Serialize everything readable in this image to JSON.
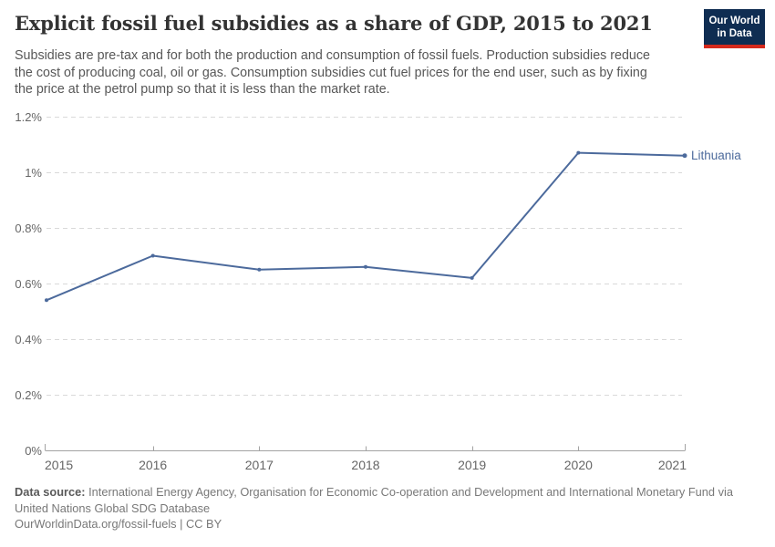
{
  "header": {
    "title": "Explicit fossil fuel subsidies as a share of GDP, 2015 to 2021",
    "subtitle": "Subsidies are pre-tax and for both the production and consumption of fossil fuels. Production subsidies reduce\nthe cost of producing coal, oil or gas. Consumption subsidies cut fuel prices for the end user, such as by fixing\nthe price at the petrol pump so that it is less than the market rate.",
    "logo": {
      "line1": "Our World",
      "line2": "in Data"
    }
  },
  "chart_data": {
    "type": "line",
    "title": "Explicit fossil fuel subsidies as a share of GDP, 2015 to 2021",
    "x": [
      2015,
      2016,
      2017,
      2018,
      2019,
      2020,
      2021
    ],
    "xticks": [
      "2015",
      "2016",
      "2017",
      "2018",
      "2019",
      "2020",
      "2021"
    ],
    "series": [
      {
        "name": "Lithuania",
        "color": "#4c6a9c",
        "values": [
          0.54,
          0.7,
          0.65,
          0.66,
          0.62,
          1.07,
          1.06
        ]
      }
    ],
    "ylim": [
      0,
      1.2
    ],
    "yticks": [
      {
        "v": 0,
        "label": "0%"
      },
      {
        "v": 0.2,
        "label": "0.2%"
      },
      {
        "v": 0.4,
        "label": "0.4%"
      },
      {
        "v": 0.6,
        "label": "0.6%"
      },
      {
        "v": 0.8,
        "label": "0.8%"
      },
      {
        "v": 1,
        "label": "1%"
      },
      {
        "v": 1.2,
        "label": "1.2%"
      }
    ],
    "grid": "horizontal-dashed",
    "legend": "end-of-line-label"
  },
  "colors": {
    "line": "#4c6a9c",
    "grid": "#d9d9d9",
    "axis": "#a3a3a3",
    "tick_label": "#666666",
    "logo_bg": "#0f2d52",
    "logo_bar": "#d5291c"
  },
  "footer": {
    "source_label": "Data source:",
    "source_text": "International Energy Agency, Organisation for Economic Co-operation and Development and International Monetary Fund via\nUnited Nations Global SDG Database",
    "link_text": "OurWorldinData.org/fossil-fuels | CC BY"
  }
}
